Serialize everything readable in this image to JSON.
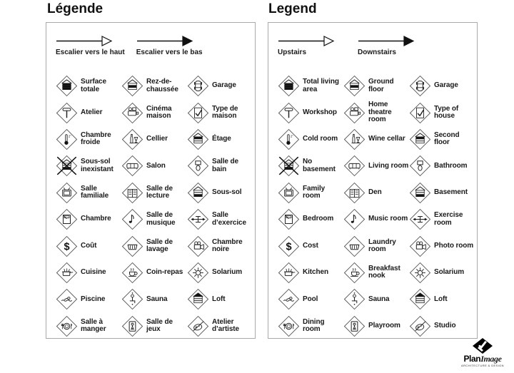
{
  "panels": [
    {
      "id": "fr",
      "title": "Légende",
      "stairs": [
        {
          "icon": "stairs-up-arrow-icon",
          "head": "open",
          "label": "Escalier vers le haut"
        },
        {
          "icon": "stairs-down-arrow-icon",
          "head": "filled",
          "label": "Escalier vers le bas"
        }
      ],
      "items": [
        {
          "icon": "house-total-area-icon",
          "label": "Surface totale"
        },
        {
          "icon": "house-ground-floor-icon",
          "label": "Rez-de-chaussée"
        },
        {
          "icon": "car-garage-icon",
          "label": "Garage"
        },
        {
          "icon": "hammer-icon",
          "label": "Atelier"
        },
        {
          "icon": "film-projector-icon",
          "label": "Cinéma maison"
        },
        {
          "icon": "checklist-icon",
          "label": "Type de maison"
        },
        {
          "icon": "thermometer-icon",
          "label": "Chambre froide"
        },
        {
          "icon": "wine-bottle-glass-icon",
          "label": "Cellier"
        },
        {
          "icon": "house-second-floor-icon",
          "label": "Étage"
        },
        {
          "icon": "no-basement-cross-icon",
          "label": "Sous-sol inexistant"
        },
        {
          "icon": "sofa-icon",
          "label": "Salon"
        },
        {
          "icon": "toilet-icon",
          "label": "Salle de bain"
        },
        {
          "icon": "tv-icon",
          "label": "Salle familiale"
        },
        {
          "icon": "open-book-icon",
          "label": "Salle de lecture"
        },
        {
          "icon": "house-basement-icon",
          "label": "Sous-sol"
        },
        {
          "icon": "bed-icon",
          "label": "Chambre"
        },
        {
          "icon": "music-note-icon",
          "label": "Salle de musique"
        },
        {
          "icon": "barbell-icon",
          "label": "Salle d’exercice"
        },
        {
          "icon": "dollar-icon",
          "label": "Coût"
        },
        {
          "icon": "washtub-icon",
          "label": "Salle de lavage"
        },
        {
          "icon": "movie-camera-icon",
          "label": "Chambre noire"
        },
        {
          "icon": "cooking-pot-icon",
          "label": "Cuisine"
        },
        {
          "icon": "coffee-cup-icon",
          "label": "Coin-repas"
        },
        {
          "icon": "sun-icon",
          "label": "Solarium"
        },
        {
          "icon": "swimmer-icon",
          "label": "Piscine"
        },
        {
          "icon": "sauna-person-icon",
          "label": "Sauna"
        },
        {
          "icon": "house-loft-icon",
          "label": "Loft"
        },
        {
          "icon": "plate-cutlery-icon",
          "label": "Salle à manger"
        },
        {
          "icon": "pawn-door-icon",
          "label": "Salle de jeux"
        },
        {
          "icon": "palette-icon",
          "label": "Atelier d’artiste"
        }
      ]
    },
    {
      "id": "en",
      "title": "Legend",
      "stairs": [
        {
          "icon": "stairs-up-arrow-icon",
          "head": "open",
          "label": "Upstairs"
        },
        {
          "icon": "stairs-down-arrow-icon",
          "head": "filled",
          "label": "Downstairs"
        }
      ],
      "items": [
        {
          "icon": "house-total-area-icon",
          "label": "Total living area"
        },
        {
          "icon": "house-ground-floor-icon",
          "label": "Ground floor"
        },
        {
          "icon": "car-garage-icon",
          "label": "Garage"
        },
        {
          "icon": "hammer-icon",
          "label": "Workshop"
        },
        {
          "icon": "film-projector-icon",
          "label": "Home theatre room"
        },
        {
          "icon": "checklist-icon",
          "label": "Type of house"
        },
        {
          "icon": "thermometer-icon",
          "label": "Cold room"
        },
        {
          "icon": "wine-bottle-glass-icon",
          "label": "Wine cellar"
        },
        {
          "icon": "house-second-floor-icon",
          "label": "Second floor"
        },
        {
          "icon": "no-basement-cross-icon",
          "label": "No basement"
        },
        {
          "icon": "sofa-icon",
          "label": "Living room"
        },
        {
          "icon": "toilet-icon",
          "label": "Bathroom"
        },
        {
          "icon": "tv-icon",
          "label": "Family room"
        },
        {
          "icon": "open-book-icon",
          "label": "Den"
        },
        {
          "icon": "house-basement-icon",
          "label": "Basement"
        },
        {
          "icon": "bed-icon",
          "label": "Bedroom"
        },
        {
          "icon": "music-note-icon",
          "label": "Music room"
        },
        {
          "icon": "barbell-icon",
          "label": "Exercise room"
        },
        {
          "icon": "dollar-icon",
          "label": "Cost"
        },
        {
          "icon": "washtub-icon",
          "label": "Laundry room"
        },
        {
          "icon": "movie-camera-icon",
          "label": "Photo room"
        },
        {
          "icon": "cooking-pot-icon",
          "label": "Kitchen"
        },
        {
          "icon": "coffee-cup-icon",
          "label": "Breakfast nook"
        },
        {
          "icon": "sun-icon",
          "label": "Solarium"
        },
        {
          "icon": "swimmer-icon",
          "label": "Pool"
        },
        {
          "icon": "sauna-person-icon",
          "label": "Sauna"
        },
        {
          "icon": "house-loft-icon",
          "label": "Loft"
        },
        {
          "icon": "plate-cutlery-icon",
          "label": "Dining room"
        },
        {
          "icon": "pawn-door-icon",
          "label": "Playroom"
        },
        {
          "icon": "palette-icon",
          "label": "Studio"
        }
      ]
    }
  ],
  "logo": {
    "name_bold": "Plan",
    "name_italic": "Image",
    "tagline": "ARCHITECTURE & DESIGN"
  }
}
